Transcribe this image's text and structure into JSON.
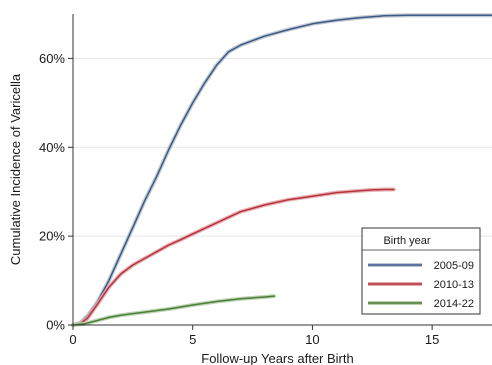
{
  "chart_data": {
    "type": "line",
    "title": "",
    "xlabel": "Follow-up Years after Birth",
    "ylabel": "Cumulative Incidence of Varicella",
    "xlim": [
      0,
      17.5
    ],
    "ylim": [
      0,
      70
    ],
    "x_ticks": [
      0,
      5,
      10,
      15
    ],
    "y_ticks": [
      0,
      20,
      40,
      60
    ],
    "x_tick_labels": [
      "0",
      "5",
      "10",
      "15"
    ],
    "y_tick_labels": [
      "0%",
      "20%",
      "40%",
      "60%"
    ],
    "grid": {
      "horizontal": true,
      "vertical": false
    },
    "legend": {
      "title": "Birth year",
      "placement": "bottom-right",
      "entries": [
        "2005-09",
        "2010-13",
        "2014-22"
      ]
    },
    "series": [
      {
        "name": "2005-09",
        "color": "#3b5b89",
        "band_color": "#bcc3cc",
        "x": [
          0,
          0.3,
          0.6,
          1,
          1.5,
          2,
          2.5,
          3,
          3.5,
          4,
          4.5,
          5,
          5.5,
          6,
          6.5,
          7,
          8,
          9,
          10,
          11,
          12,
          13,
          14,
          15,
          16,
          17.5
        ],
        "y": [
          0,
          0.5,
          2,
          5,
          10,
          16,
          22,
          28,
          33.5,
          39.5,
          45,
          50,
          54.5,
          58.5,
          61.5,
          63,
          65,
          66.5,
          67.8,
          68.6,
          69.2,
          69.6,
          69.7,
          69.7,
          69.7,
          69.7
        ]
      },
      {
        "name": "2010-13",
        "color": "#b8333c",
        "band_color": "#e3a8ad",
        "x": [
          0,
          0.3,
          0.6,
          1,
          1.5,
          2,
          2.5,
          3,
          3.5,
          4,
          4.5,
          5,
          6,
          7,
          8,
          9,
          10,
          11,
          12,
          12.5,
          13,
          13.4
        ],
        "y": [
          0,
          0.3,
          1.5,
          4.5,
          8.5,
          11.5,
          13.5,
          15,
          16.5,
          18,
          19.2,
          20.5,
          23,
          25.5,
          27,
          28.2,
          29,
          29.8,
          30.2,
          30.4,
          30.5,
          30.5
        ]
      },
      {
        "name": "2014-22",
        "color": "#4a7f35",
        "band_color": "#b7cfae",
        "x": [
          0,
          0.5,
          1,
          1.5,
          2,
          3,
          4,
          5,
          6,
          7,
          8,
          8.4
        ],
        "y": [
          0,
          0.3,
          1,
          1.7,
          2.2,
          2.9,
          3.6,
          4.5,
          5.3,
          5.9,
          6.3,
          6.5
        ]
      }
    ]
  }
}
